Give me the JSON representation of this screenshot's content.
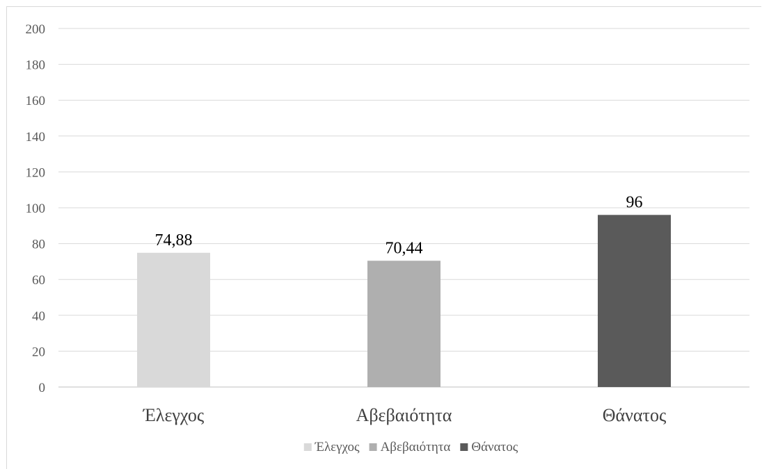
{
  "chart_data": {
    "type": "bar",
    "categories": [
      "Έλεγχος",
      "Αβεβαιότητα",
      "Θάνατος"
    ],
    "values": [
      74.88,
      70.44,
      96
    ],
    "value_labels": [
      "74,88",
      "70,44",
      "96"
    ],
    "colors": [
      "#d9d9d9",
      "#afafaf",
      "#5a5a5a"
    ],
    "ylim": [
      0,
      200
    ],
    "yticks": [
      0,
      20,
      40,
      60,
      80,
      100,
      120,
      140,
      160,
      180,
      200
    ],
    "grid": true,
    "legend": {
      "placement": "bottom",
      "entries": [
        "Έλεγχος",
        "Αβεβαιότητα",
        "Θάνατος"
      ]
    },
    "title": "",
    "xlabel": "",
    "ylabel": ""
  }
}
